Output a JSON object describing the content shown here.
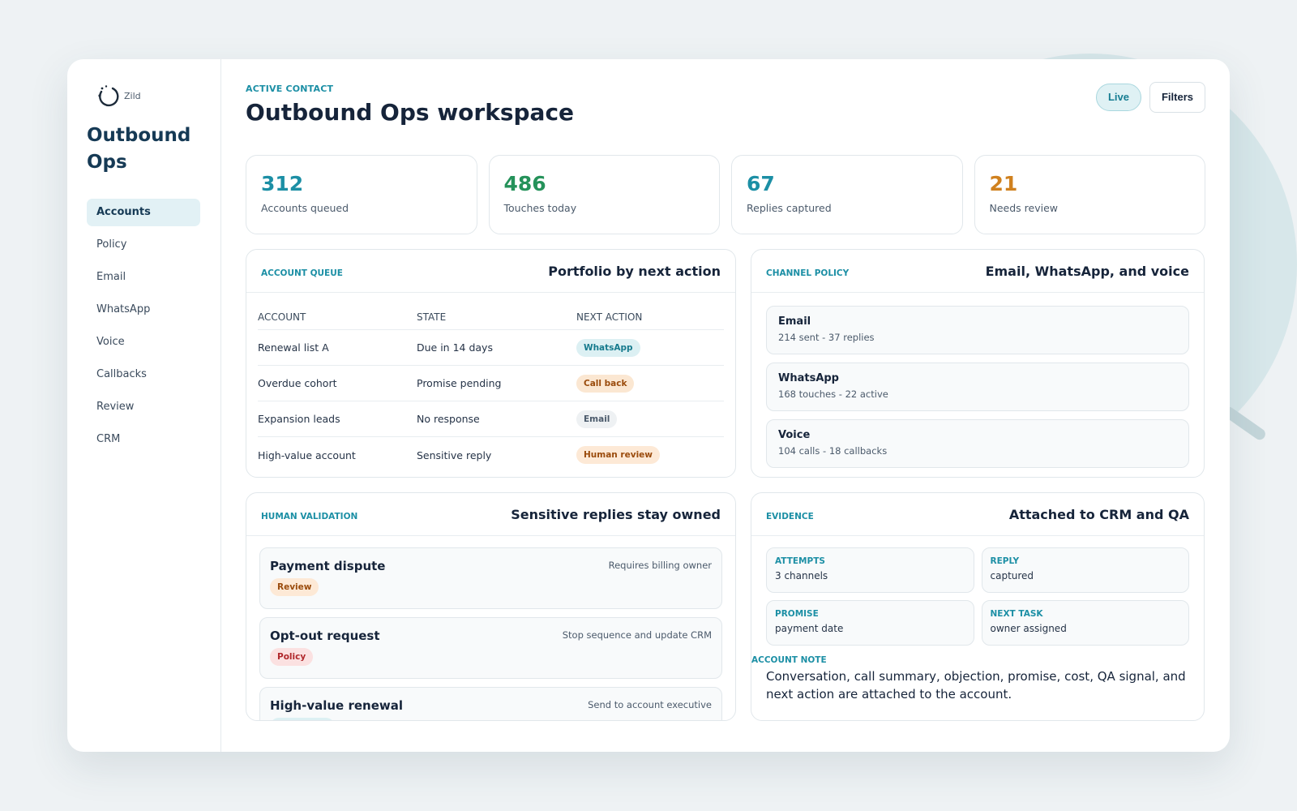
{
  "brand": {
    "name": "Zild",
    "logo_icon": "spinner-logo-icon"
  },
  "sidebar": {
    "title": "Outbound Ops",
    "items": [
      {
        "label": "Accounts",
        "active": true
      },
      {
        "label": "Policy",
        "active": false
      },
      {
        "label": "Email",
        "active": false
      },
      {
        "label": "WhatsApp",
        "active": false
      },
      {
        "label": "Voice",
        "active": false
      },
      {
        "label": "Callbacks",
        "active": false
      },
      {
        "label": "Review",
        "active": false
      },
      {
        "label": "CRM",
        "active": false
      }
    ]
  },
  "header": {
    "eyebrow": "ACTIVE CONTACT",
    "title": "Outbound Ops workspace",
    "live_label": "Live",
    "filters_label": "Filters"
  },
  "stats": [
    {
      "value": "312",
      "label": "Accounts queued",
      "color": "#1c8fa5"
    },
    {
      "value": "486",
      "label": "Touches today",
      "color": "#25925a"
    },
    {
      "value": "67",
      "label": "Replies captured",
      "color": "#1c8fa5"
    },
    {
      "value": "21",
      "label": "Needs review",
      "color": "#d0811f"
    }
  ],
  "queue": {
    "eyebrow": "ACCOUNT QUEUE",
    "title": "Portfolio by next action",
    "columns": [
      "ACCOUNT",
      "STATE",
      "NEXT ACTION"
    ],
    "rows": [
      {
        "account": "Renewal list A",
        "state": "Due in 14 days",
        "action": "WhatsApp",
        "tone": "teal"
      },
      {
        "account": "Overdue cohort",
        "state": "Promise pending",
        "action": "Call back",
        "tone": "orange"
      },
      {
        "account": "Expansion leads",
        "state": "No response",
        "action": "Email",
        "tone": "gray"
      },
      {
        "account": "High-value account",
        "state": "Sensitive reply",
        "action": "Human review",
        "tone": "peach"
      }
    ]
  },
  "policy": {
    "eyebrow": "CHANNEL POLICY",
    "title": "Email, WhatsApp, and voice",
    "channels": [
      {
        "name": "Email",
        "meta": "214 sent - 37 replies"
      },
      {
        "name": "WhatsApp",
        "meta": "168 touches - 22 active"
      },
      {
        "name": "Voice",
        "meta": "104 calls - 18 callbacks"
      }
    ]
  },
  "validation": {
    "eyebrow": "HUMAN VALIDATION",
    "title": "Sensitive replies stay owned",
    "items": [
      {
        "title": "Payment dispute",
        "note": "Requires billing owner",
        "tag": "Review",
        "tone": "peach"
      },
      {
        "title": "Opt-out request",
        "note": "Stop sequence and update CRM",
        "tag": "Policy",
        "tone": "red"
      },
      {
        "title": "High-value renewal",
        "note": "Send to account executive",
        "tag": "",
        "tone": "teal"
      }
    ]
  },
  "evidence": {
    "eyebrow": "EVIDENCE",
    "title": "Attached to CRM and QA",
    "items": [
      {
        "label": "ATTEMPTS",
        "value": "3 channels"
      },
      {
        "label": "REPLY",
        "value": "captured"
      },
      {
        "label": "PROMISE",
        "value": "payment date"
      },
      {
        "label": "NEXT TASK",
        "value": "owner assigned"
      }
    ],
    "note_label": "ACCOUNT NOTE",
    "note_text": "Conversation, call summary, objection, promise, cost, QA signal, and next action are attached to the account."
  }
}
